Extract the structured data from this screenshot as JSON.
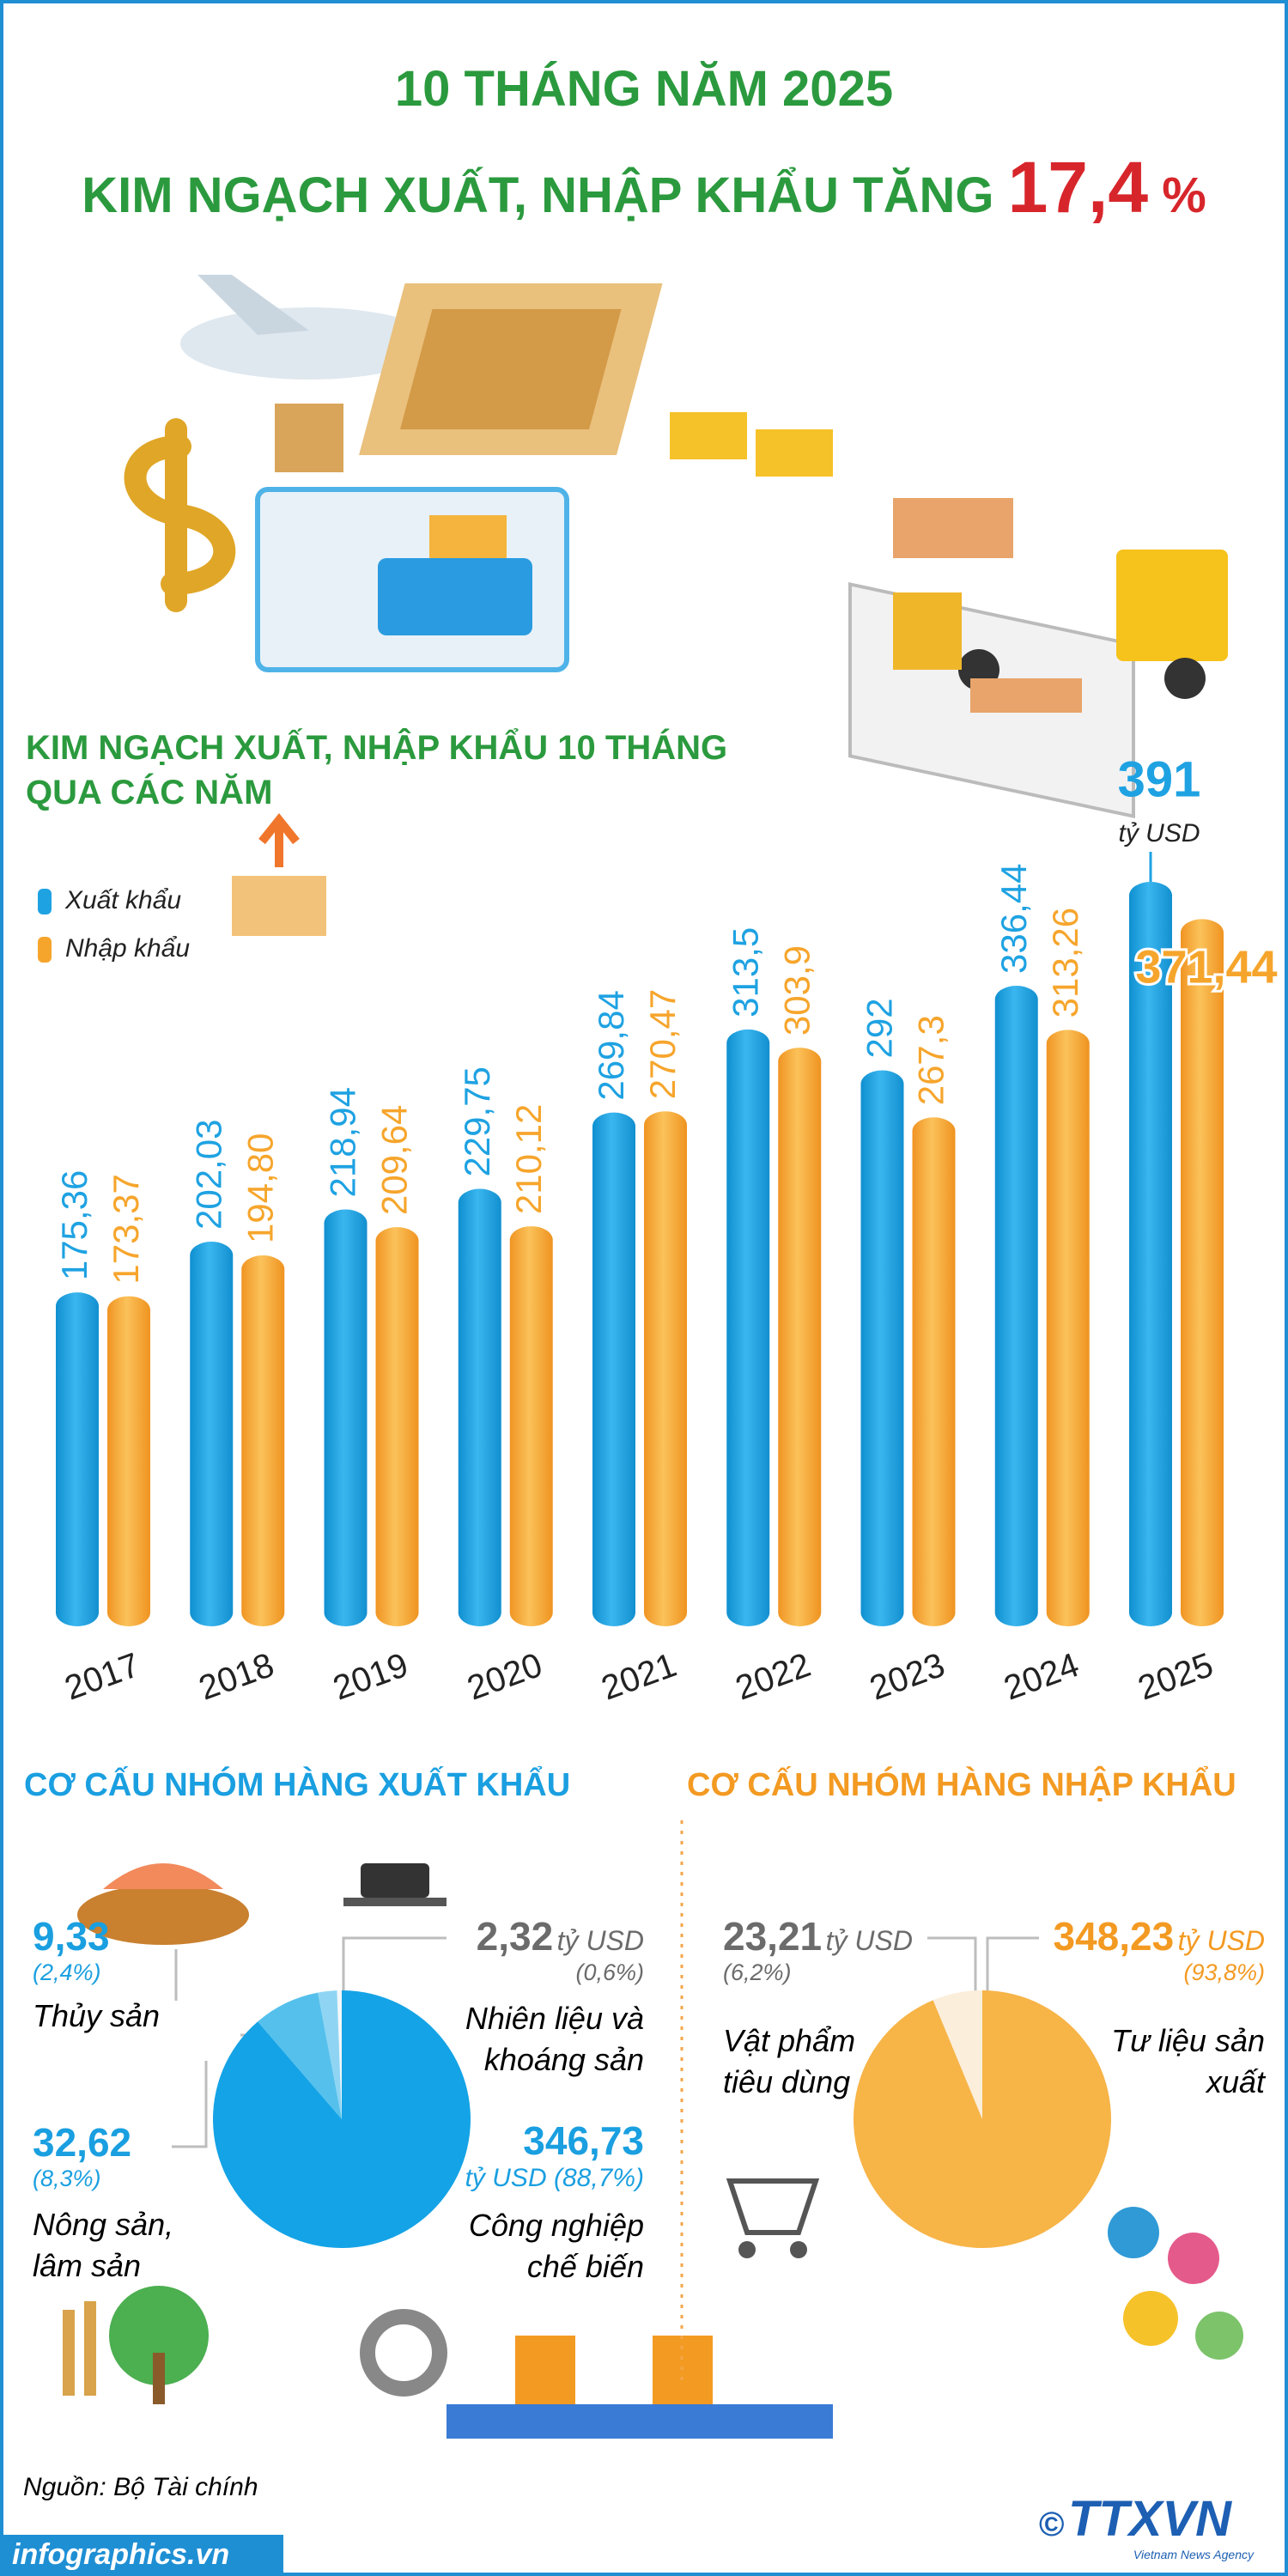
{
  "header": {
    "title": "10 THÁNG NĂM 2025",
    "headline": "KIM NGẠCH XUẤT, NHẬP KHẨU TĂNG",
    "highlight": "17,4",
    "highlight_unit": "%"
  },
  "chart_data": [
    {
      "type": "bar",
      "title": "KIM NGẠCH XUẤT, NHẬP KHẨU 10 THÁNG\nQUA CÁC NĂM",
      "unit": "tỷ USD",
      "legend": "top-left",
      "categories": [
        "2017",
        "2018",
        "2019",
        "2020",
        "2021",
        "2022",
        "2023",
        "2024",
        "2025"
      ],
      "series": [
        {
          "name": "Xuất khẩu",
          "color": "#1ea2e2",
          "values": [
            175.36,
            202.03,
            218.94,
            229.75,
            269.84,
            313.5,
            292,
            336.44,
            391
          ],
          "value_labels": [
            "175,36",
            "202,03",
            "218,94",
            "229,75",
            "269,84",
            "313,5",
            "292",
            "336,44",
            "391"
          ]
        },
        {
          "name": "Nhập khẩu",
          "color": "#f6a52c",
          "values": [
            173.37,
            194.8,
            209.64,
            210.12,
            270.47,
            303.9,
            267.3,
            313.26,
            371.44
          ],
          "value_labels": [
            "173,37",
            "194,80",
            "209,64",
            "210,12",
            "270,47",
            "303,9",
            "267,3",
            "313,26",
            "371,44"
          ]
        }
      ]
    },
    {
      "type": "pie",
      "title": "CƠ CẤU NHÓM HÀNG XUẤT KHẨU",
      "unit": "tỷ USD",
      "categories": [
        "Nhiên liệu và khoáng sản",
        "Thủy sản",
        "Nông sản, lâm sản",
        "Công nghiệp chế biến"
      ],
      "values": [
        2.32,
        9.33,
        32.62,
        346.73
      ],
      "value_labels": [
        "2,32",
        "9,33",
        "32,62",
        "346,73"
      ],
      "percent_values": [
        0.6,
        2.4,
        8.3,
        88.7
      ],
      "percent_labels": [
        "(0,6%)",
        "(2,4%)",
        "(8,3%)",
        "(88,7%)"
      ],
      "colors": [
        "#f4f7f9",
        "#8fd5f3",
        "#55c0ec",
        "#14a3e6"
      ]
    },
    {
      "type": "pie",
      "title": "CƠ CẤU NHÓM HÀNG NHẬP KHẨU",
      "unit": "tỷ USD",
      "categories": [
        "Vật phẩm tiêu dùng",
        "Tư liệu sản xuất"
      ],
      "values": [
        23.21,
        348.23
      ],
      "value_labels": [
        "23,21",
        "348,23"
      ],
      "percent_values": [
        6.2,
        93.8
      ],
      "percent_labels": [
        "(6,2%)",
        "(93,8%)"
      ],
      "colors": [
        "#fbeedb",
        "#f7b447"
      ]
    }
  ],
  "source": "Nguồn: Bộ Tài chính",
  "website": "infographics.vn",
  "logo": {
    "copyright": "©",
    "name": "TTXVN",
    "tagline": "Vietnam News Agency"
  }
}
